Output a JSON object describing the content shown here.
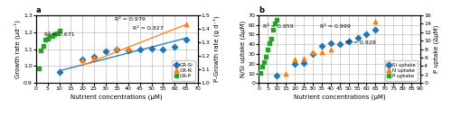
{
  "chart_data": [
    {
      "type": "scatter",
      "title": "a",
      "x_label": "Nutrient concentrations (μM)",
      "y_label": "Growth rate (μd⁻¹)",
      "y2_label": "P-Growth rate (g d⁻¹)",
      "xlim": [
        0,
        70
      ],
      "xticks": [
        0,
        5,
        10,
        15,
        20,
        25,
        30,
        35,
        40,
        45,
        50,
        55,
        60,
        65,
        70
      ],
      "ylim": [
        0.9,
        1.3
      ],
      "yticks": [
        0.9,
        {
          "value": 1.0,
          "label": "1.0"
        },
        1.1,
        1.2,
        1.3
      ],
      "y2lim": [
        1.0,
        1.5
      ],
      "y2ticks": [
        {
          "value": 1.0,
          "label": "1.0"
        },
        1.1,
        1.2,
        1.3,
        1.4,
        1.5
      ],
      "grid": true,
      "legend": "lower right",
      "series": [
        {
          "name": "GR-Si",
          "marker": "diamond",
          "x": [
            10,
            20,
            25,
            30,
            35,
            40,
            45,
            50,
            55,
            60,
            65
          ],
          "values": [
            0.963,
            1.04,
            1.055,
            1.085,
            1.1,
            1.095,
            1.1,
            1.105,
            1.1,
            1.115,
            1.155
          ],
          "trend": {
            "x": [
              10,
              65
            ],
            "values": [
              0.972,
              1.165
            ]
          }
        },
        {
          "name": "GR-N",
          "marker": "triangle",
          "x": [
            20,
            25,
            35,
            40,
            65
          ],
          "values": [
            1.035,
            1.05,
            1.105,
            1.105,
            1.245
          ],
          "trend": {
            "x": [
              20,
              65
            ],
            "values": [
              1.005,
              1.245
            ]
          }
        },
        {
          "name": "GR-P",
          "marker": "square",
          "x": [
            1,
            2,
            3,
            4,
            5,
            6,
            7,
            8,
            9,
            10
          ],
          "values": [
            0.985,
            1.095,
            1.12,
            1.155,
            1.16,
            1.175,
            1.18,
            1.19,
            1.195,
            1.21
          ]
        }
      ],
      "annotations": [
        {
          "text": "R² = 0.671",
          "x": 3.5,
          "y": 1.175
        },
        {
          "text": "R² = 0.979",
          "x": 34,
          "y": 1.27
        },
        {
          "text": "R² = 0.827",
          "x": 42,
          "y": 1.215
        }
      ]
    },
    {
      "type": "scatter",
      "title": "b",
      "x_label": "Nutrient concentrations (μM)",
      "y_label": "N/Si uptake (ΔμM)",
      "y2_label": "P uptake (ΔμM)",
      "xlim": [
        0,
        90
      ],
      "xticks": [
        0,
        5,
        10,
        15,
        20,
        25,
        30,
        35,
        40,
        45,
        50,
        55,
        60,
        65,
        70,
        75,
        80,
        85,
        90
      ],
      "ylim": [
        0,
        70
      ],
      "yticks": [
        0,
        10,
        20,
        30,
        40,
        50,
        60,
        70
      ],
      "y2lim": [
        0,
        16
      ],
      "y2ticks": [
        0,
        2,
        4,
        6,
        8,
        10,
        12,
        14,
        16
      ],
      "grid": true,
      "legend": "lower right",
      "series": [
        {
          "name": "Si uptake",
          "marker": "diamond",
          "x": [
            10,
            20,
            25,
            30,
            35,
            40,
            45,
            50,
            55,
            60,
            65
          ],
          "values": [
            8,
            20,
            21,
            30,
            38,
            41,
            40,
            43,
            47,
            50,
            55
          ]
        },
        {
          "name": "N uptake",
          "marker": "triangle",
          "x": [
            15,
            20,
            25,
            30,
            35,
            40,
            65
          ],
          "values": [
            10,
            24,
            25,
            32,
            32,
            35,
            63
          ]
        },
        {
          "name": "P uptake",
          "marker": "square",
          "axis": "y2",
          "x": [
            1,
            2,
            3,
            4,
            5,
            6,
            7,
            8,
            9,
            10
          ],
          "values": [
            2.4,
            3.8,
            5.0,
            6.2,
            8.0,
            9.5,
            10.5,
            12.5,
            14.0,
            15.0
          ]
        }
      ],
      "annotations": [
        {
          "text": "R² = 0.959",
          "x": 2.5,
          "y": 57
        },
        {
          "text": "R² = 0.999",
          "x": 34,
          "y": 57
        },
        {
          "text": "R² = 0.928",
          "x": 48,
          "y": 40
        }
      ]
    }
  ]
}
